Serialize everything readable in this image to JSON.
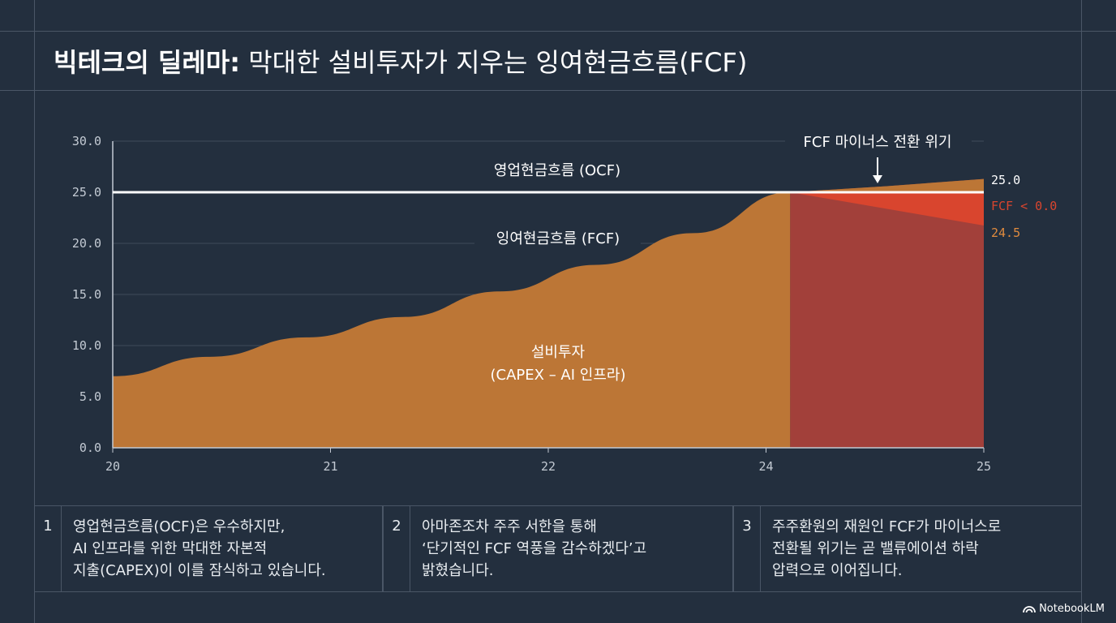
{
  "title": {
    "bold": "빅테크의 딜레마:",
    "rest": " 막대한 설비투자가 지우는 잉여현금흐름(FCF)"
  },
  "chart_data": {
    "type": "area",
    "x_ticks": [
      "20",
      "21",
      "22",
      "24",
      "25"
    ],
    "y_ticks": [
      "30.0",
      "25.0",
      "20.0",
      "15.0",
      "10.0",
      "5.0",
      "0.0"
    ],
    "ylim": [
      0,
      30
    ],
    "grid": true,
    "series": [
      {
        "name": "영업현금흐름 (OCF)",
        "values": [
          25.0,
          25.0,
          25.0,
          25.0,
          25.0,
          25.0,
          25.0,
          25.0,
          25.0,
          25.0
        ]
      },
      {
        "name": "설비투자",
        "values": [
          7.0,
          8.9,
          10.8,
          12.8,
          15.3,
          17.9,
          21.0,
          25.0,
          25.6,
          26.3
        ]
      }
    ],
    "annotations": {
      "fcf_label": "잉여현금흐름 (FCF)",
      "capex_label_line1": "설비투자",
      "capex_label_line2": "(CAPEX – AI 인프라)",
      "warning": "FCF 마이너스 전환 위기",
      "value_top": "25.0",
      "value_fcf": "FCF < 0.0",
      "value_bottom": "24.5"
    },
    "colors": {
      "capex": "#bc7636",
      "crisis": "#a2403a",
      "negative": "#d9452e",
      "ocf": "#ffffff"
    }
  },
  "footer": [
    {
      "num": "1",
      "lines": [
        "영업현금흐름(OCF)은 우수하지만,",
        "AI 인프라를 위한 막대한 자본적",
        "지출(CAPEX)이 이를 잠식하고 있습니다."
      ]
    },
    {
      "num": "2",
      "lines": [
        "아마존조차 주주 서한을 통해",
        "‘단기적인 FCF 역풍을 감수하겠다’고",
        "밝혔습니다."
      ]
    },
    {
      "num": "3",
      "lines": [
        "주주환원의 재원인 FCF가 마이너스로",
        "전환될 위기는 곧 밸류에이션 하락",
        "압력으로 이어집니다."
      ]
    }
  ],
  "brand": "NotebookLM"
}
